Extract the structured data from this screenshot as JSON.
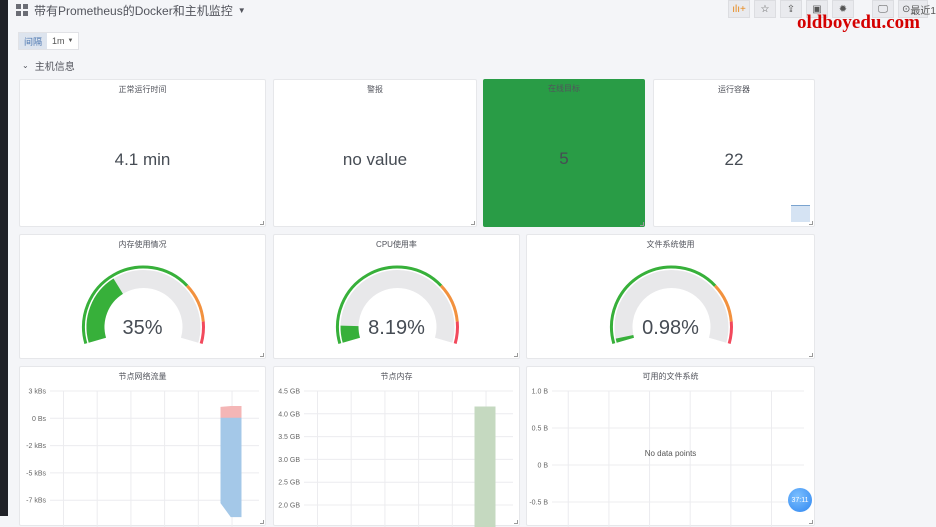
{
  "header": {
    "title": "带有Prometheus的Docker和主机监控",
    "time_picker": "最近1",
    "watermark": "oldboyedu.com",
    "toolbar": [
      {
        "icon": "add-panel-icon",
        "label": "ılı+"
      },
      {
        "icon": "star-icon",
        "label": "☆"
      },
      {
        "icon": "share-icon",
        "label": "⇪"
      },
      {
        "icon": "save-icon",
        "label": "▣"
      },
      {
        "icon": "gear-icon",
        "label": "✹"
      },
      {
        "icon": "tv-mode-icon",
        "label": "🖵"
      }
    ]
  },
  "variables": {
    "interval_label": "间隔",
    "interval_value": "1m"
  },
  "row": {
    "title": "主机信息"
  },
  "stats": [
    {
      "title": "正常运行时间",
      "value": "4.1 min"
    },
    {
      "title": "警报",
      "value": "no value"
    },
    {
      "title": "在线目标",
      "value": "5",
      "bg": "#299c46"
    },
    {
      "title": "运行容器",
      "value": "22"
    }
  ],
  "gauges": [
    {
      "title": "内存使用情况",
      "value": "35%",
      "fraction": 0.35
    },
    {
      "title": "CPU使用率",
      "value": "8.19%",
      "fraction": 0.0819
    },
    {
      "title": "文件系统使用",
      "value": "0.98%",
      "fraction": 0.0098
    }
  ],
  "colors": {
    "ok": "#37b03a",
    "warn": "#f2913e",
    "crit": "#f2495c",
    "track": "#e8e8ea",
    "stat_green": "#299c46"
  },
  "chart_data": [
    {
      "type": "area",
      "title": "节点网络流量",
      "yticks": [
        "3 kBs",
        "0 Bs",
        "-2 kBs",
        "-5 kBs",
        "-7 kBs"
      ],
      "ylim": [
        -8.5,
        3
      ],
      "series": [
        {
          "values": [
            1.2,
            1.3
          ],
          "color": "#f4b6b6"
        },
        {
          "values": [
            -7.2,
            -8.2
          ],
          "color": "#a4c8e8"
        }
      ]
    },
    {
      "type": "area",
      "title": "节点内存",
      "yticks": [
        "4.5 GB",
        "4.0 GB",
        "3.5 GB",
        "3.0 GB",
        "2.5 GB",
        "2.0 GB"
      ],
      "ylim": [
        1.8,
        4.5
      ],
      "series": [
        {
          "values": [
            4.15,
            4.15
          ],
          "color": "#c5d9c0"
        }
      ]
    },
    {
      "type": "line",
      "title": "可用的文件系统",
      "yticks": [
        "1.0 B",
        "0.5 B",
        "0 B",
        "-0.5 B"
      ],
      "ylim": [
        -0.7,
        1.0
      ],
      "series": [],
      "message": "No data points"
    }
  ],
  "badge": "37:11"
}
